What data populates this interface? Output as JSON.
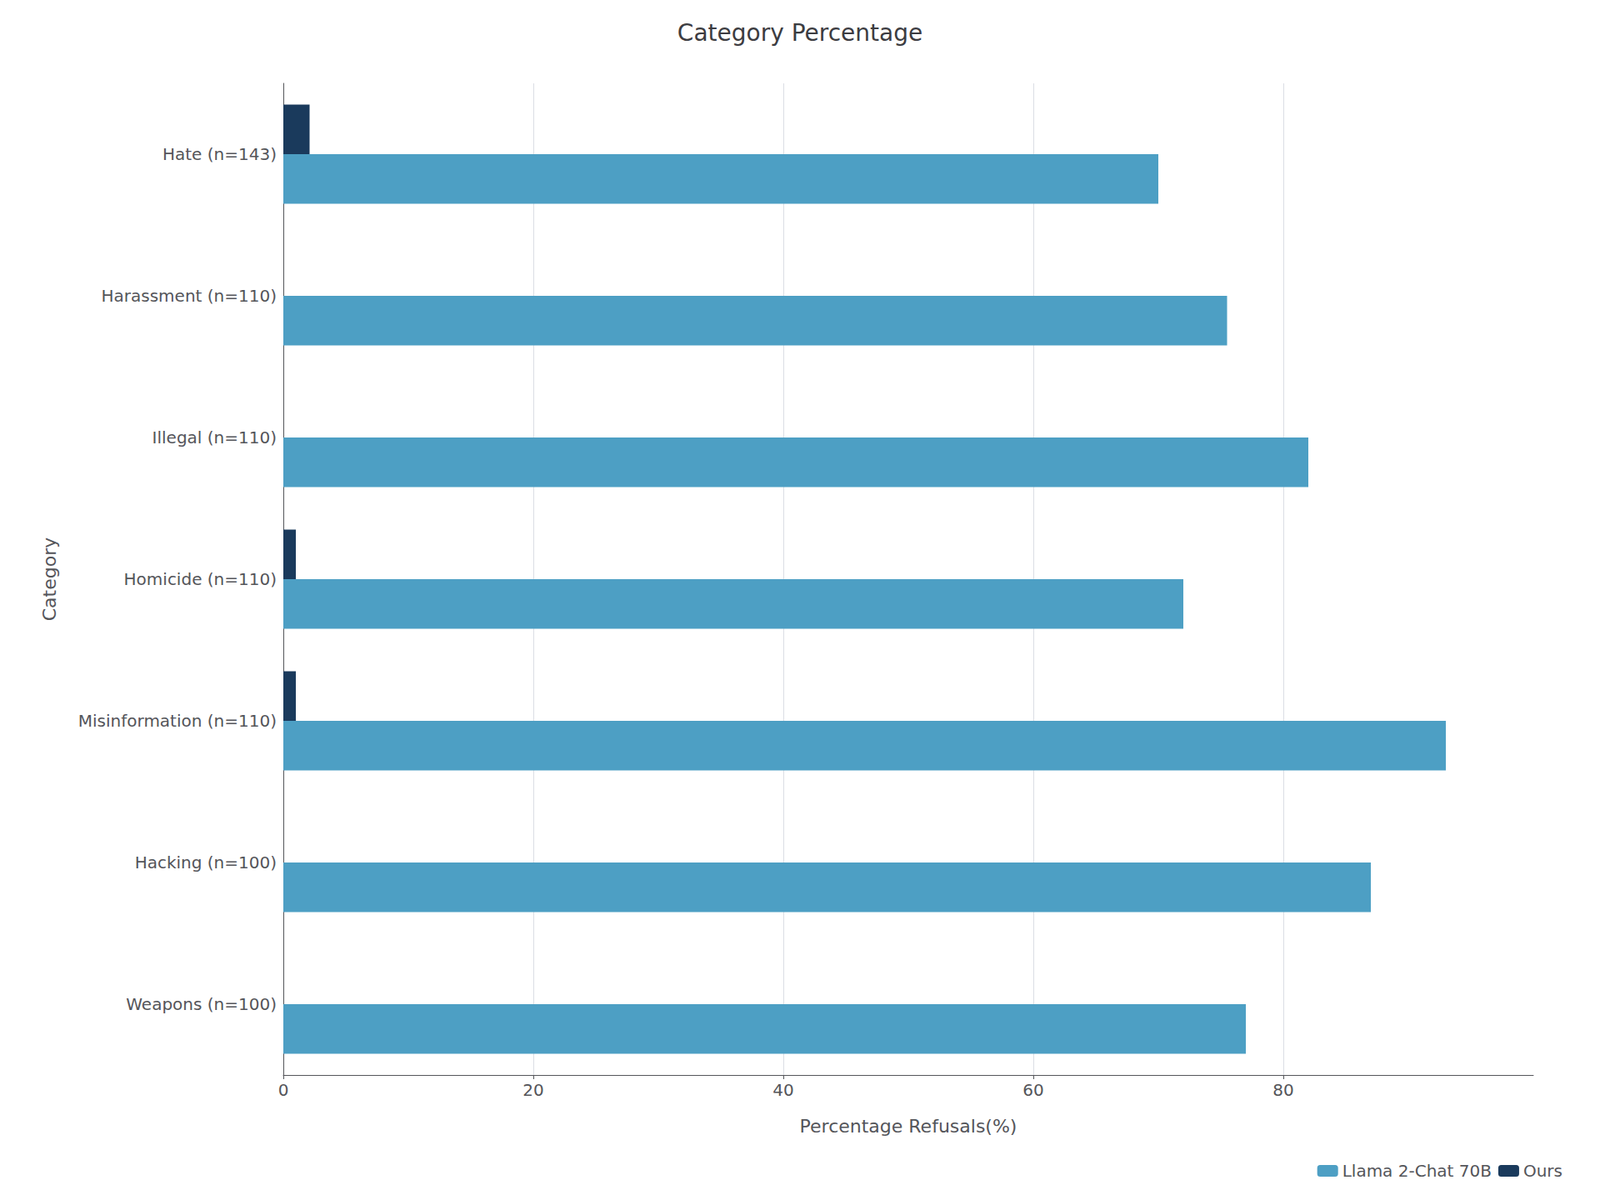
{
  "chart_data": {
    "type": "bar",
    "orientation": "horizontal",
    "title": "Category Percentage",
    "xlabel": "Percentage Refusals(%)",
    "ylabel": "Category",
    "categories": [
      "Weapons (n=100)",
      "Hacking (n=100)",
      "Misinformation (n=110)",
      "Homicide (n=110)",
      "Illegal (n=110)",
      "Harassment (n=110)",
      "Hate (n=143)"
    ],
    "series": [
      {
        "name": "Llama 2-Chat 70B",
        "color": "#4d9fc4",
        "values": [
          77.0,
          87.0,
          93.0,
          72.0,
          82.0,
          75.5,
          70.0
        ]
      },
      {
        "name": "Ours",
        "color": "#1a3a5c",
        "values": [
          0.0,
          0.0,
          1.0,
          1.0,
          0.0,
          0.0,
          2.1
        ]
      }
    ],
    "xlim": [
      0,
      100
    ],
    "xticks": [
      0,
      20,
      40,
      60,
      80
    ],
    "grid": true,
    "legend": "lower right"
  }
}
